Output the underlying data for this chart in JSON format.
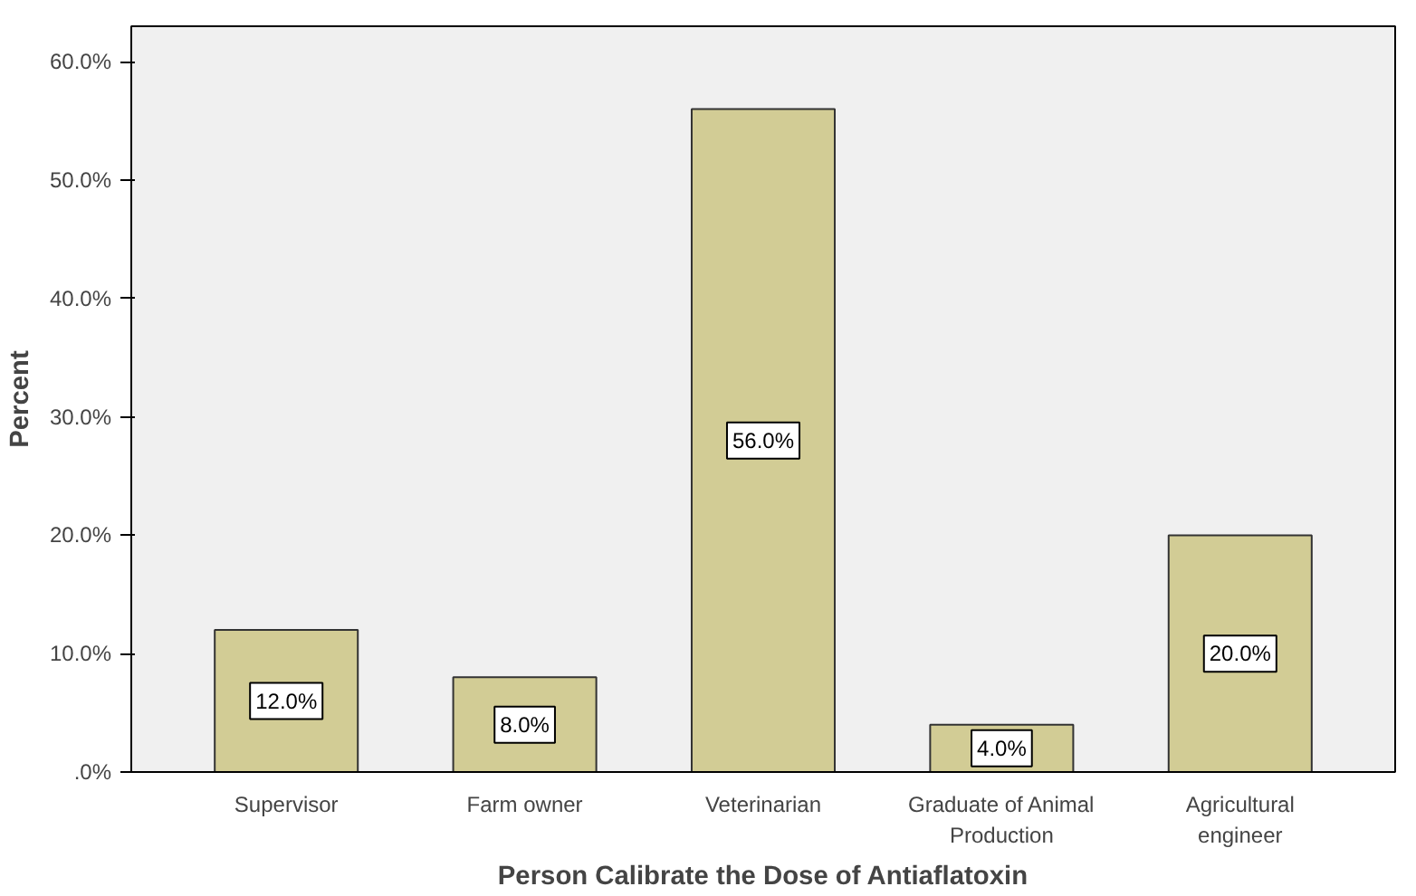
{
  "chart_data": {
    "type": "bar",
    "xlabel": "Person Calibrate the Dose of Antiaflatoxin",
    "ylabel": "Percent",
    "categories": [
      "Supervisor",
      "Farm owner",
      "Veterinarian",
      "Graduate of Animal Production",
      "Agricultural engineer"
    ],
    "values": [
      12,
      8,
      56,
      4,
      20
    ],
    "value_labels": [
      "12.0%",
      "8.0%",
      "56.0%",
      "4.0%",
      "20.0%"
    ],
    "color": "#d2cc95",
    "ylim": [
      0,
      63
    ],
    "yticks": [
      {
        "value": 0,
        "label": ".0%"
      },
      {
        "value": 10,
        "label": "10.0%"
      },
      {
        "value": 20,
        "label": "20.0%"
      },
      {
        "value": 30,
        "label": "30.0%"
      },
      {
        "value": 40,
        "label": "40.0%"
      },
      {
        "value": 50,
        "label": "50.0%"
      },
      {
        "value": 60,
        "label": "60.0%"
      }
    ],
    "grid": false
  }
}
